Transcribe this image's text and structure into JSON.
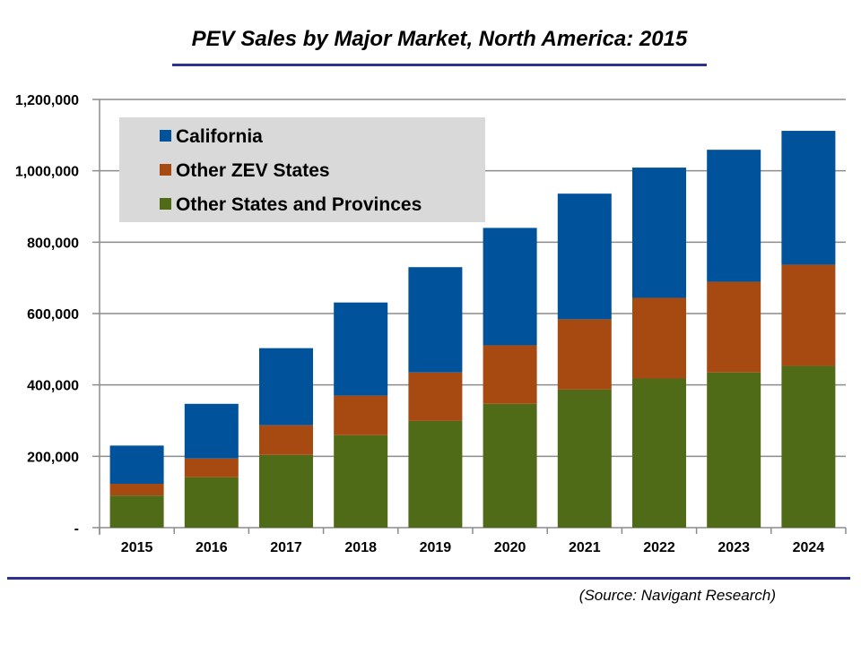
{
  "title": "PEV Sales by Major Market, North America: 2015",
  "source": "(Source: Navigant Research)",
  "chart_data": {
    "type": "bar",
    "stacked": true,
    "title": "PEV Sales by Major Market, North America: 2015",
    "xlabel": "",
    "ylabel": "",
    "categories": [
      "2015",
      "2016",
      "2017",
      "2018",
      "2019",
      "2020",
      "2021",
      "2022",
      "2023",
      "2024"
    ],
    "series": [
      {
        "name": "Other States and Provinces",
        "color": "#4f6b17",
        "values": [
          90000,
          141000,
          204000,
          259000,
          299000,
          347000,
          387000,
          418000,
          435000,
          453000
        ]
      },
      {
        "name": "Other ZEV States",
        "color": "#a64a12",
        "values": [
          33000,
          53000,
          83000,
          111000,
          136000,
          164000,
          197000,
          226000,
          254000,
          284000
        ]
      },
      {
        "name": "California",
        "color": "#00529b",
        "values": [
          107000,
          153000,
          216000,
          261000,
          295000,
          329000,
          352000,
          365000,
          370000,
          375000
        ]
      }
    ],
    "ylim": [
      0,
      1200000
    ],
    "yticks": [
      0,
      200000,
      400000,
      600000,
      800000,
      1000000,
      1200000
    ],
    "ytick_labels": [
      "-",
      "200,000",
      "400,000",
      "600,000",
      "800,000",
      "1,000,000",
      "1,200,000"
    ],
    "grid": true,
    "legend": {
      "position": "top-left",
      "order": [
        "California",
        "Other ZEV States",
        "Other States and Provinces"
      ],
      "background": "#d9d9d9"
    }
  }
}
